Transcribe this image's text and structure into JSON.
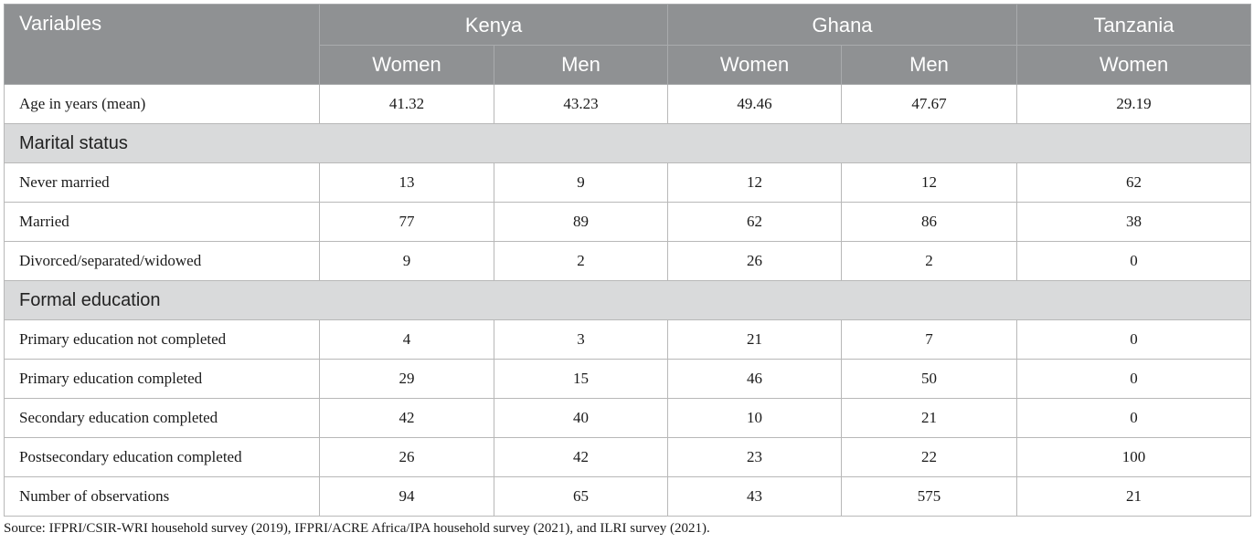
{
  "header": {
    "variables_label": "Variables",
    "countries": [
      {
        "name": "Kenya",
        "subs": [
          "Women",
          "Men"
        ]
      },
      {
        "name": "Ghana",
        "subs": [
          "Women",
          "Men"
        ]
      },
      {
        "name": "Tanzania",
        "subs": [
          "Women"
        ]
      }
    ]
  },
  "rows": [
    {
      "type": "data",
      "label": "Age in years (mean)",
      "values": [
        "41.32",
        "43.23",
        "49.46",
        "47.67",
        "29.19"
      ]
    },
    {
      "type": "section",
      "label": "Marital status"
    },
    {
      "type": "data",
      "label": "Never married",
      "values": [
        "13",
        "9",
        "12",
        "12",
        "62"
      ]
    },
    {
      "type": "data",
      "label": "Married",
      "values": [
        "77",
        "89",
        "62",
        "86",
        "38"
      ]
    },
    {
      "type": "data",
      "label": "Divorced/separated/widowed",
      "values": [
        "9",
        "2",
        "26",
        "2",
        "0"
      ]
    },
    {
      "type": "section",
      "label": "Formal education"
    },
    {
      "type": "data",
      "label": "Primary education not completed",
      "values": [
        "4",
        "3",
        "21",
        "7",
        "0"
      ]
    },
    {
      "type": "data",
      "label": "Primary education completed",
      "values": [
        "29",
        "15",
        "46",
        "50",
        "0"
      ]
    },
    {
      "type": "data",
      "label": "Secondary education completed",
      "values": [
        "42",
        "40",
        "10",
        "21",
        "0"
      ]
    },
    {
      "type": "data",
      "label": "Postsecondary education completed",
      "values": [
        "26",
        "42",
        "23",
        "22",
        "100"
      ]
    },
    {
      "type": "data",
      "label": "Number of observations",
      "values": [
        "94",
        "65",
        "43",
        "575",
        "21"
      ]
    }
  ],
  "source": "Source: IFPRI/CSIR-WRI household survey (2019), IFPRI/ACRE Africa/IPA household survey (2021), and ILRI survey (2021).",
  "colors": {
    "header_bg": "#8f9193",
    "section_bg": "#d9dadb"
  }
}
